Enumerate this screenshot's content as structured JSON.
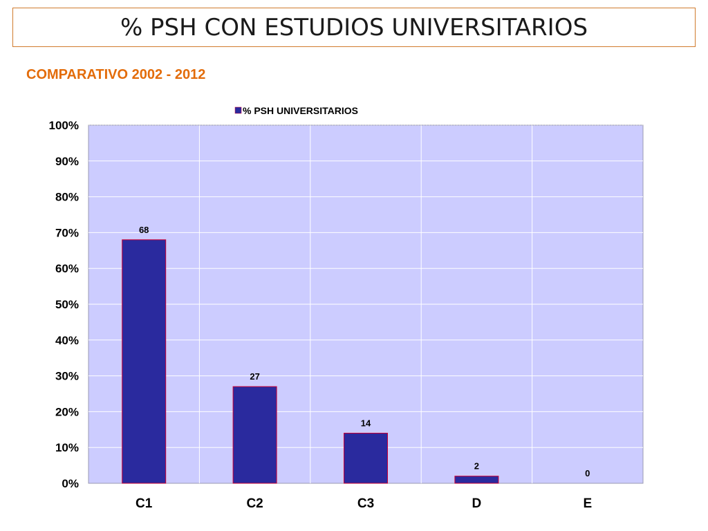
{
  "header": {
    "title": "% PSH CON ESTUDIOS UNIVERSITARIOS",
    "subtitle": "COMPARATIVO 2002 - 2012"
  },
  "colors": {
    "title_border": "#d07a2c",
    "subtitle": "#e36c0a",
    "plot_background": "#ccccff",
    "bar_fill": "#2a2a9e",
    "bar_border": "#cc0033",
    "grid": "#ffffff"
  },
  "chart_data": {
    "type": "bar",
    "categories": [
      "C1",
      "C2",
      "C3",
      "D",
      "E"
    ],
    "series": [
      {
        "name": "% PSH UNIVERSITARIOS",
        "values": [
          68,
          27,
          14,
          2,
          0
        ],
        "labels": [
          "68",
          "27",
          "14",
          "2",
          "0"
        ]
      }
    ],
    "yticks": [
      "0%",
      "10%",
      "20%",
      "30%",
      "40%",
      "50%",
      "60%",
      "70%",
      "80%",
      "90%",
      "100%"
    ],
    "ylim": [
      0,
      100
    ],
    "grid": true,
    "legend": "top"
  }
}
